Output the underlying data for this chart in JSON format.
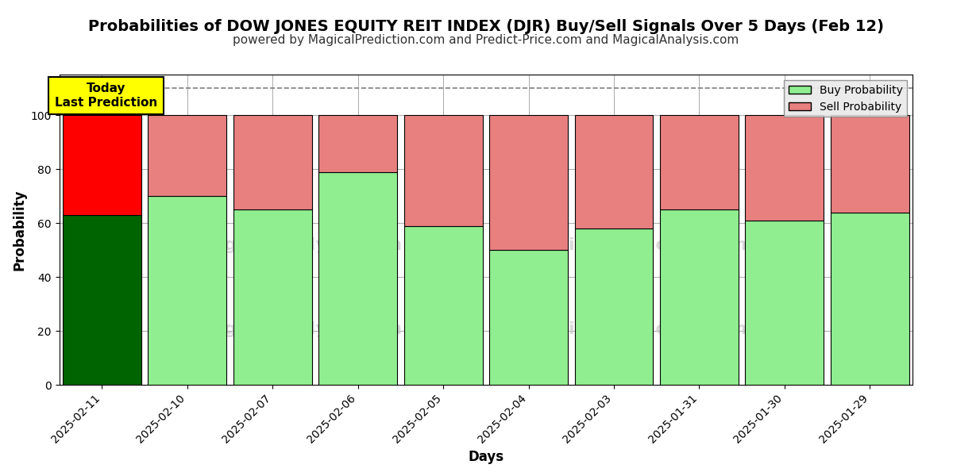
{
  "title": "Probabilities of DOW JONES EQUITY REIT INDEX (DJR) Buy/Sell Signals Over 5 Days (Feb 12)",
  "subtitle": "powered by MagicalPrediction.com and Predict-Price.com and MagicalAnalysis.com",
  "xlabel": "Days",
  "ylabel": "Probability",
  "dates": [
    "2025-02-11",
    "2025-02-10",
    "2025-02-07",
    "2025-02-06",
    "2025-02-05",
    "2025-02-04",
    "2025-02-03",
    "2025-01-31",
    "2025-01-30",
    "2025-01-29"
  ],
  "buy_values": [
    63,
    70,
    65,
    79,
    59,
    50,
    58,
    65,
    61,
    64
  ],
  "sell_values": [
    37,
    30,
    35,
    21,
    41,
    50,
    42,
    35,
    39,
    36
  ],
  "buy_color_today": "#006400",
  "sell_color_today": "#ff0000",
  "buy_color_normal": "#90EE90",
  "sell_color_normal": "#E88080",
  "bar_edge_color": "#000000",
  "today_annotation_text": "Today\nLast Prediction",
  "today_annotation_bg": "#ffff00",
  "legend_buy_label": "Buy Probability",
  "legend_sell_label": "Sell Probability",
  "ylim": [
    0,
    115
  ],
  "dashed_line_y": 110,
  "background_color": "#ffffff",
  "grid_color": "#aaaaaa",
  "title_fontsize": 14,
  "subtitle_fontsize": 11,
  "axis_label_fontsize": 12,
  "tick_fontsize": 10
}
